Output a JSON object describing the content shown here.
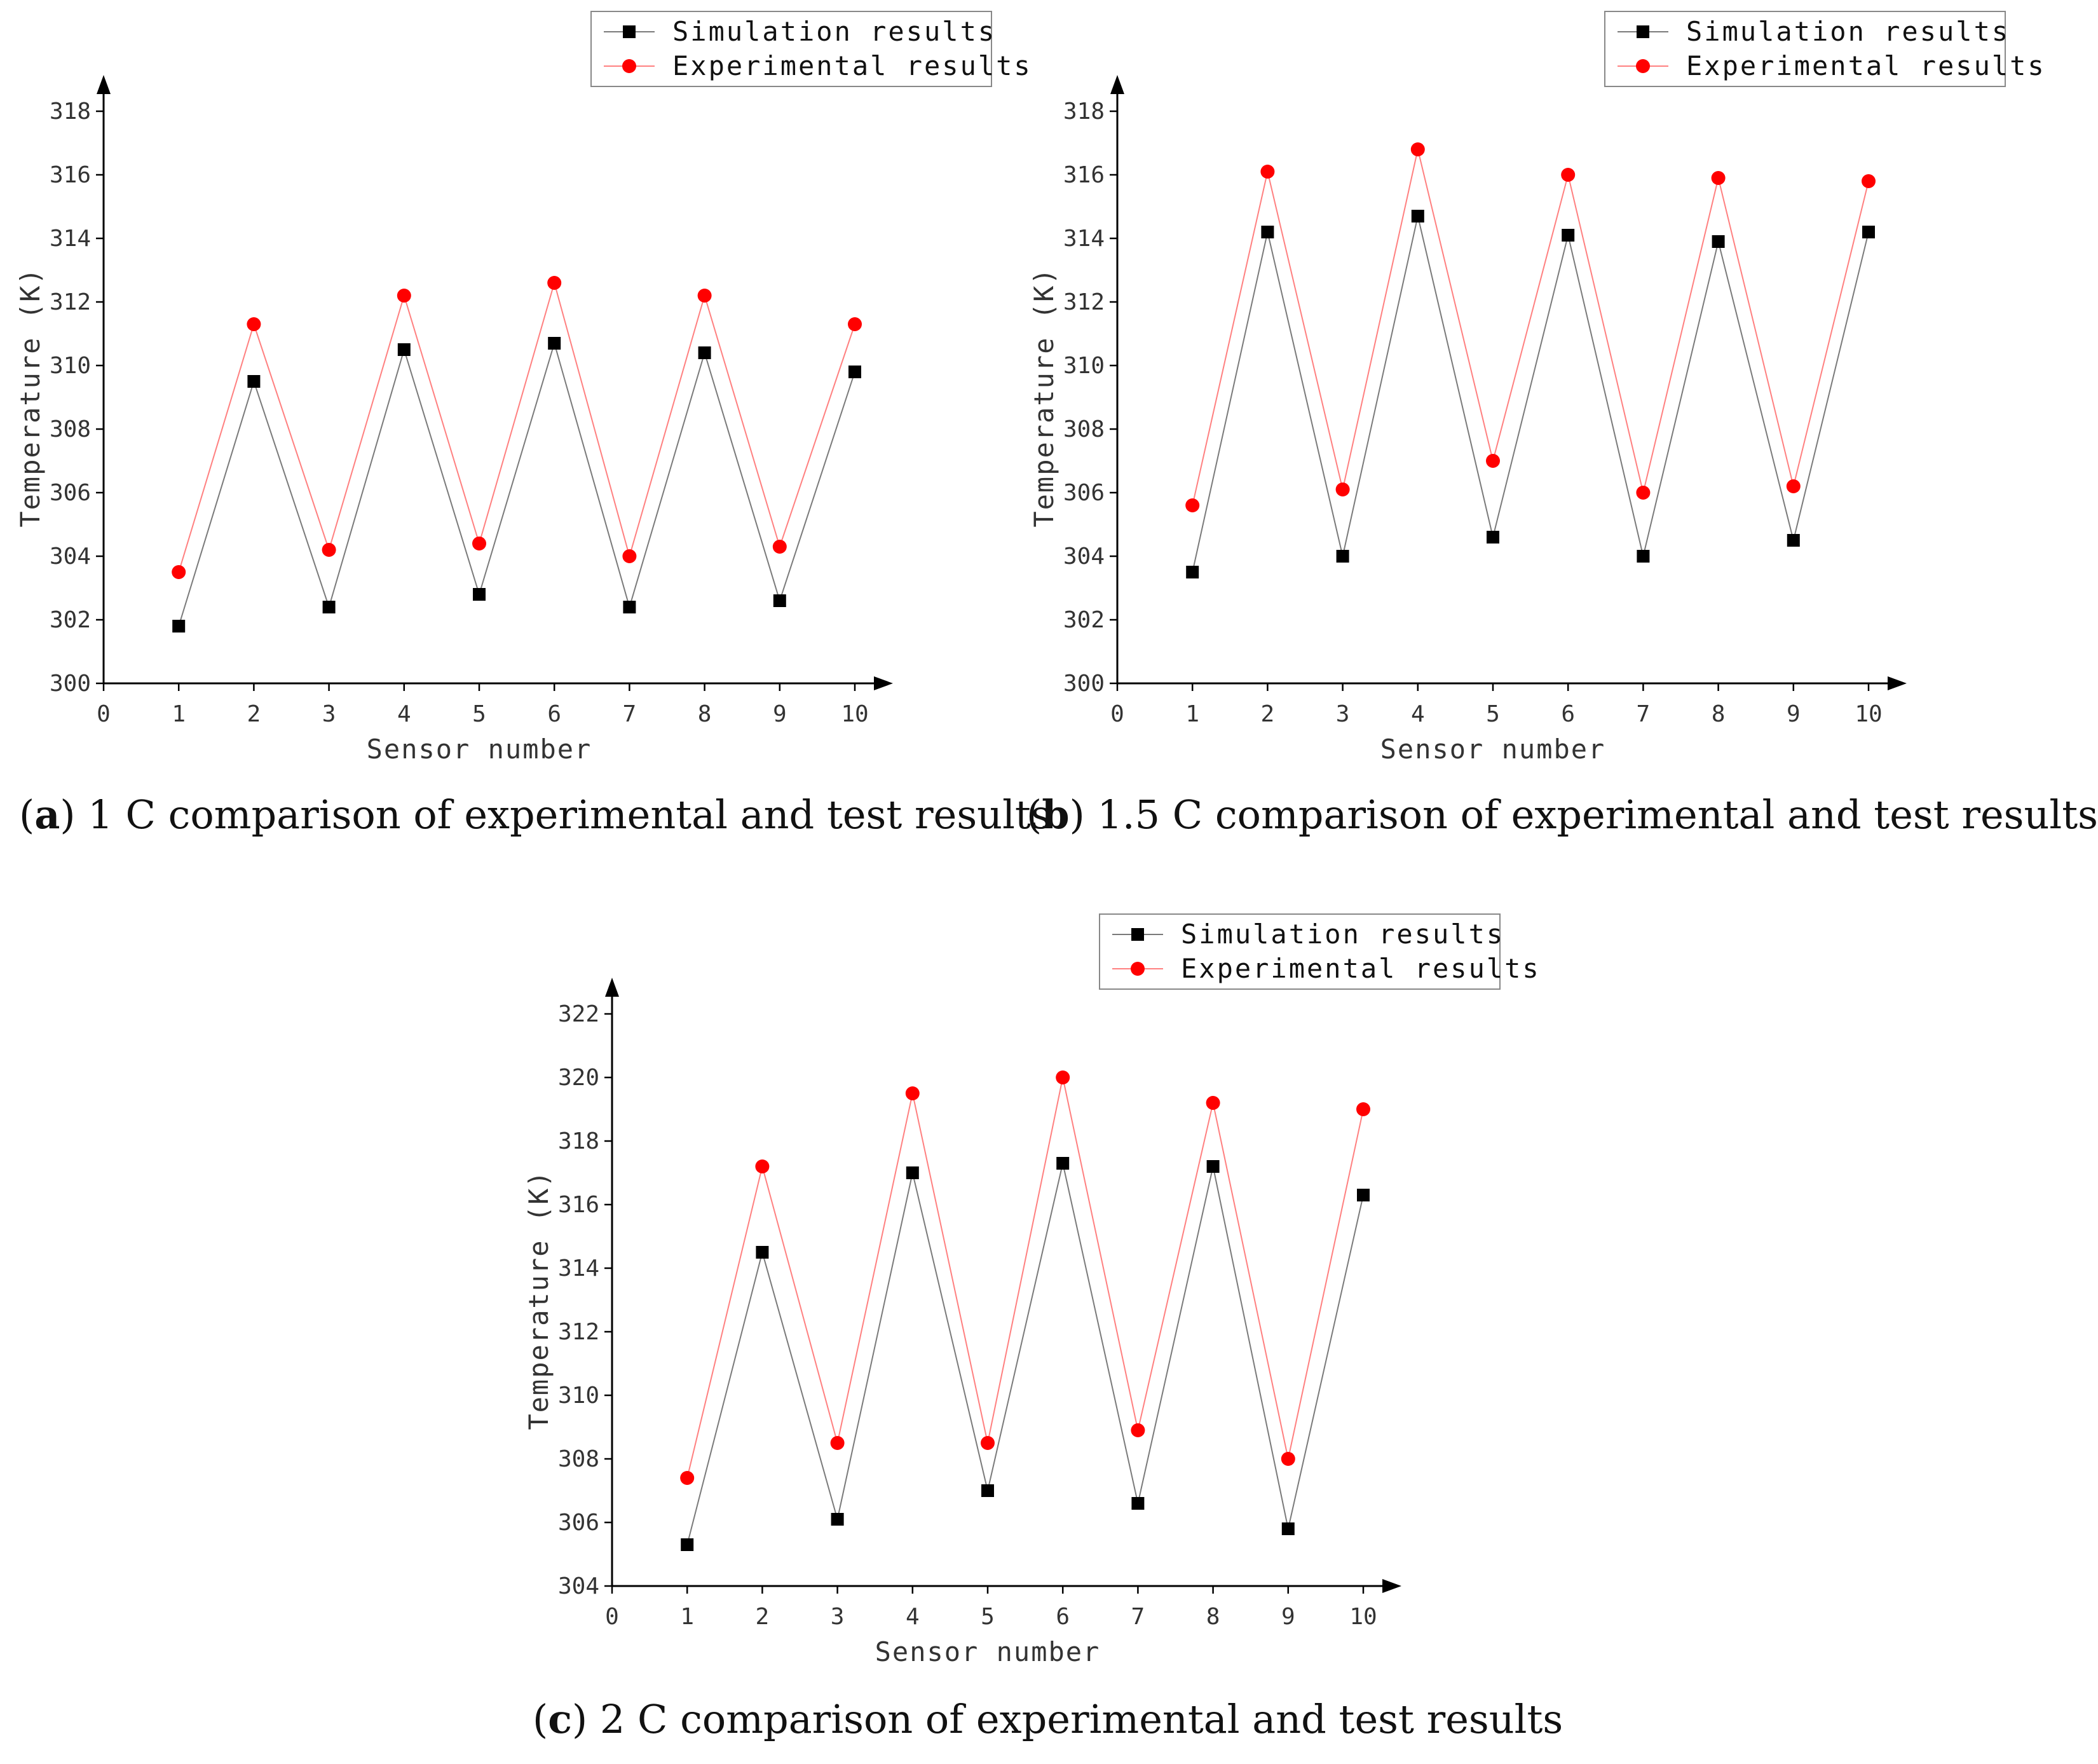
{
  "legend": {
    "simulation": "Simulation results",
    "experimental": "Experimental results"
  },
  "colors": {
    "simulation": "#000000",
    "experimental": "#ff0000",
    "simulation_line": "#7a7a7a",
    "experimental_line": "#ff8080"
  },
  "chart_data": [
    {
      "id": "a",
      "type": "line",
      "xlabel": "Sensor number",
      "ylabel": "Temperature (K)",
      "xlim": [
        0,
        10
      ],
      "ylim": [
        300,
        318
      ],
      "xticks": [
        0,
        1,
        2,
        3,
        4,
        5,
        6,
        7,
        8,
        9,
        10
      ],
      "yticks": [
        300,
        302,
        304,
        306,
        308,
        310,
        312,
        314,
        316,
        318
      ],
      "x": [
        1,
        2,
        3,
        4,
        5,
        6,
        7,
        8,
        9,
        10
      ],
      "series": [
        {
          "name": "Simulation results",
          "marker": "square",
          "values": [
            301.8,
            309.5,
            302.4,
            310.5,
            302.8,
            310.7,
            302.4,
            310.4,
            302.6,
            309.8
          ]
        },
        {
          "name": "Experimental results",
          "marker": "circle",
          "values": [
            303.5,
            311.3,
            304.2,
            312.2,
            304.4,
            312.6,
            304.0,
            312.2,
            304.3,
            311.3
          ]
        }
      ]
    },
    {
      "id": "b",
      "type": "line",
      "xlabel": "Sensor number",
      "ylabel": "Temperature (K)",
      "xlim": [
        0,
        10
      ],
      "ylim": [
        300,
        318
      ],
      "xticks": [
        0,
        1,
        2,
        3,
        4,
        5,
        6,
        7,
        8,
        9,
        10
      ],
      "yticks": [
        300,
        302,
        304,
        306,
        308,
        310,
        312,
        314,
        316,
        318
      ],
      "x": [
        1,
        2,
        3,
        4,
        5,
        6,
        7,
        8,
        9,
        10
      ],
      "series": [
        {
          "name": "Simulation results",
          "marker": "square",
          "values": [
            303.5,
            314.2,
            304.0,
            314.7,
            304.6,
            314.1,
            304.0,
            313.9,
            304.5,
            314.2
          ]
        },
        {
          "name": "Experimental results",
          "marker": "circle",
          "values": [
            305.6,
            316.1,
            306.1,
            316.8,
            307.0,
            316.0,
            306.0,
            315.9,
            306.2,
            315.8
          ]
        }
      ]
    },
    {
      "id": "c",
      "type": "line",
      "xlabel": "Sensor number",
      "ylabel": "Temperature (K)",
      "xlim": [
        0,
        10
      ],
      "ylim": [
        304,
        322
      ],
      "xticks": [
        0,
        1,
        2,
        3,
        4,
        5,
        6,
        7,
        8,
        9,
        10
      ],
      "yticks": [
        304,
        306,
        308,
        310,
        312,
        314,
        316,
        318,
        320,
        322
      ],
      "x": [
        1,
        2,
        3,
        4,
        5,
        6,
        7,
        8,
        9,
        10
      ],
      "series": [
        {
          "name": "Simulation results",
          "marker": "square",
          "values": [
            305.3,
            314.5,
            306.1,
            317.0,
            307.0,
            317.3,
            306.6,
            317.2,
            305.8,
            316.3
          ]
        },
        {
          "name": "Experimental results",
          "marker": "circle",
          "values": [
            307.4,
            317.2,
            308.5,
            319.5,
            308.5,
            320.0,
            308.9,
            319.2,
            308.0,
            319.0
          ]
        }
      ]
    }
  ],
  "captions": {
    "a": {
      "label": "a",
      "text": " 1 C comparison of experimental and test results"
    },
    "b": {
      "label": "b",
      "text": " 1.5 C comparison of experimental and test results"
    },
    "c": {
      "label": "c",
      "text": " 2 C comparison of experimental and test results"
    }
  }
}
